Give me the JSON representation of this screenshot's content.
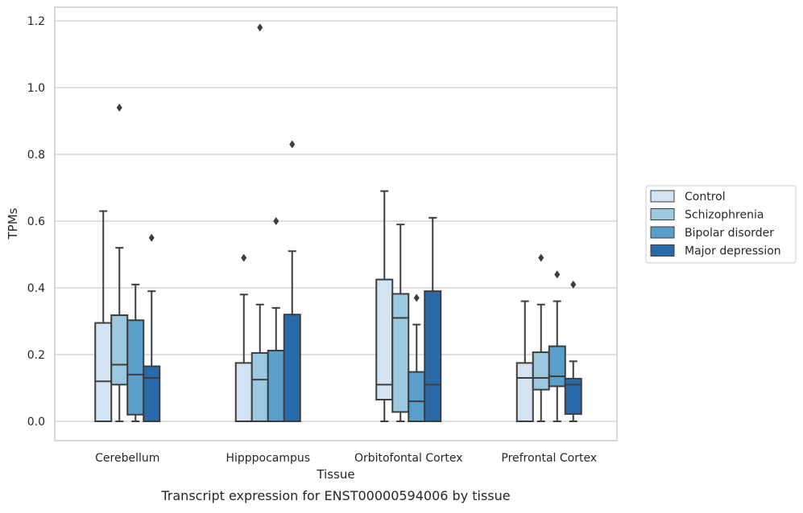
{
  "chart_data": {
    "type": "box",
    "title": "",
    "caption": "Transcript expression for ENST00000594006 by tissue",
    "xlabel": "Tissue",
    "ylabel": "TPMs",
    "ylim": [
      -0.055,
      1.24
    ],
    "yticks": [
      0.0,
      0.2,
      0.4,
      0.6,
      0.8,
      1.0,
      1.2
    ],
    "ytick_labels": [
      "0.0",
      "0.2",
      "0.4",
      "0.6",
      "0.8",
      "1.0",
      "1.2"
    ],
    "grid": "horizontal",
    "legend_position": "right",
    "categories": [
      "Cerebellum",
      "Hipppocampus",
      "Orbitofontal Cortex",
      "Prefrontal Cortex"
    ],
    "series": [
      {
        "name": "Control",
        "color": "#d3e3f1",
        "boxes": [
          {
            "whisker_low": 0.0,
            "q1": 0.0,
            "median": 0.12,
            "q3": 0.295,
            "whisker_high": 0.63,
            "outliers": []
          },
          {
            "whisker_low": 0.0,
            "q1": 0.0,
            "median": 0.0,
            "q3": 0.175,
            "whisker_high": 0.38,
            "outliers": [
              0.49
            ]
          },
          {
            "whisker_low": 0.0,
            "q1": 0.065,
            "median": 0.11,
            "q3": 0.425,
            "whisker_high": 0.69,
            "outliers": []
          },
          {
            "whisker_low": 0.0,
            "q1": 0.0,
            "median": 0.13,
            "q3": 0.175,
            "whisker_high": 0.36,
            "outliers": []
          }
        ]
      },
      {
        "name": "Schizophrenia",
        "color": "#9dc9e0",
        "boxes": [
          {
            "whisker_low": 0.0,
            "q1": 0.11,
            "median": 0.17,
            "q3": 0.318,
            "whisker_high": 0.52,
            "outliers": [
              0.94
            ]
          },
          {
            "whisker_low": 0.0,
            "q1": 0.0,
            "median": 0.125,
            "q3": 0.205,
            "whisker_high": 0.35,
            "outliers": [
              1.18
            ]
          },
          {
            "whisker_low": 0.0,
            "q1": 0.028,
            "median": 0.31,
            "q3": 0.382,
            "whisker_high": 0.59,
            "outliers": []
          },
          {
            "whisker_low": 0.0,
            "q1": 0.095,
            "median": 0.13,
            "q3": 0.207,
            "whisker_high": 0.35,
            "outliers": [
              0.49
            ]
          }
        ]
      },
      {
        "name": "Bipolar disorder",
        "color": "#5a9fcb",
        "boxes": [
          {
            "whisker_low": 0.0,
            "q1": 0.02,
            "median": 0.14,
            "q3": 0.303,
            "whisker_high": 0.41,
            "outliers": []
          },
          {
            "whisker_low": 0.0,
            "q1": 0.0,
            "median": 0.0,
            "q3": 0.212,
            "whisker_high": 0.34,
            "outliers": [
              0.6
            ]
          },
          {
            "whisker_low": 0.0,
            "q1": 0.0,
            "median": 0.06,
            "q3": 0.148,
            "whisker_high": 0.29,
            "outliers": [
              0.37
            ]
          },
          {
            "whisker_low": 0.0,
            "q1": 0.105,
            "median": 0.135,
            "q3": 0.225,
            "whisker_high": 0.36,
            "outliers": [
              0.44
            ]
          }
        ]
      },
      {
        "name": "Major depression",
        "color": "#2b6aa9",
        "boxes": [
          {
            "whisker_low": 0.0,
            "q1": 0.0,
            "median": 0.13,
            "q3": 0.165,
            "whisker_high": 0.39,
            "outliers": [
              0.55
            ]
          },
          {
            "whisker_low": 0.0,
            "q1": 0.0,
            "median": 0.0,
            "q3": 0.32,
            "whisker_high": 0.51,
            "outliers": [
              0.83
            ]
          },
          {
            "whisker_low": 0.0,
            "q1": 0.0,
            "median": 0.11,
            "q3": 0.39,
            "whisker_high": 0.61,
            "outliers": []
          },
          {
            "whisker_low": 0.0,
            "q1": 0.022,
            "median": 0.11,
            "q3": 0.128,
            "whisker_high": 0.18,
            "outliers": [
              0.41
            ]
          }
        ]
      }
    ]
  }
}
